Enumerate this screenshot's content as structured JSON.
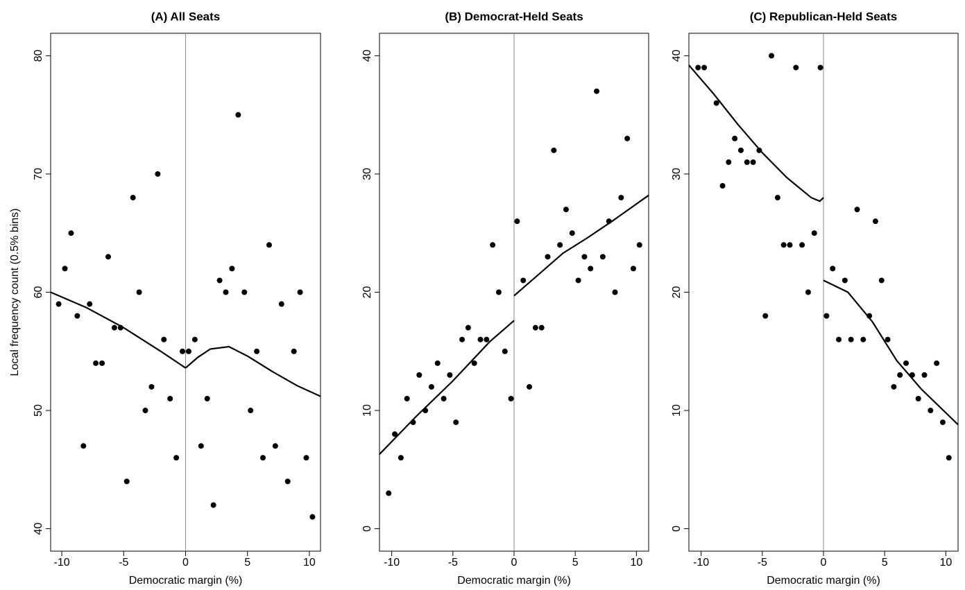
{
  "chart_data": [
    {
      "type": "scatter",
      "title": "(A) All Seats",
      "x_label": "Democratic margin (%)",
      "y_label": "Local frequency count (0.5% bins)",
      "xlim": [
        -10.9,
        10.9
      ],
      "ylim": [
        38.1,
        81.9
      ],
      "xticks": [
        -10,
        -5,
        0,
        5,
        10
      ],
      "yticks": [
        40,
        50,
        60,
        70,
        80
      ],
      "cutoff": 0,
      "point_color": "#000000",
      "line_color": "#000000",
      "points": {
        "x": [
          -10.25,
          -9.75,
          -9.25,
          -8.75,
          -8.25,
          -7.75,
          -7.25,
          -6.75,
          -6.25,
          -5.75,
          -5.25,
          -4.75,
          -4.25,
          -3.75,
          -3.25,
          -2.75,
          -2.25,
          -1.75,
          -1.25,
          -0.75,
          -0.25,
          0.25,
          0.75,
          1.25,
          1.75,
          2.25,
          2.75,
          3.25,
          3.75,
          4.25,
          4.75,
          5.25,
          5.75,
          6.25,
          6.75,
          7.25,
          7.75,
          8.25,
          8.75,
          9.25,
          9.75,
          10.25
        ],
        "y": [
          59,
          62,
          65,
          58,
          47,
          59,
          54,
          54,
          63,
          57,
          57,
          44,
          68,
          60,
          50,
          52,
          70,
          56,
          51,
          46,
          55,
          55,
          56,
          47,
          51,
          42,
          61,
          60,
          62,
          75,
          60,
          50,
          55,
          46,
          64,
          47,
          59,
          44,
          55,
          60,
          46,
          41
        ]
      },
      "fit_left": {
        "x": [
          -10.9,
          -8,
          -5,
          -2,
          0
        ],
        "y": [
          60,
          58.7,
          57,
          55,
          53.6
        ]
      },
      "fit_right": {
        "x": [
          0,
          1,
          2,
          3.5,
          5,
          7,
          9,
          10.9
        ],
        "y": [
          53.6,
          54.5,
          55.2,
          55.4,
          54.6,
          53.3,
          52.1,
          51.2
        ]
      }
    },
    {
      "type": "scatter",
      "title": "(B) Democrat-Held Seats",
      "x_label": "Democratic margin (%)",
      "xlim": [
        -11,
        11
      ],
      "ylim": [
        -1.9,
        41.9
      ],
      "xticks": [
        -10,
        -5,
        0,
        5,
        10
      ],
      "yticks": [
        0,
        10,
        20,
        30,
        40
      ],
      "cutoff": 0,
      "point_color": "#000000",
      "line_color": "#000000",
      "points": {
        "x": [
          -10.25,
          -9.75,
          -9.25,
          -8.75,
          -8.25,
          -7.75,
          -7.25,
          -6.75,
          -6.25,
          -5.75,
          -5.25,
          -4.75,
          -4.25,
          -3.75,
          -3.25,
          -2.75,
          -2.25,
          -1.75,
          -1.25,
          -0.75,
          -0.25,
          0.25,
          0.75,
          1.25,
          1.75,
          2.25,
          2.75,
          3.25,
          3.75,
          4.25,
          4.75,
          5.25,
          5.75,
          6.25,
          6.75,
          7.25,
          7.75,
          8.25,
          8.75,
          9.25,
          9.75,
          10.25
        ],
        "y": [
          3,
          8,
          6,
          11,
          9,
          13,
          10,
          12,
          14,
          11,
          13,
          9,
          16,
          17,
          14,
          16,
          16,
          24,
          20,
          15,
          11,
          26,
          21,
          12,
          17,
          17,
          23,
          32,
          24,
          27,
          25,
          21,
          23,
          22,
          37,
          23,
          26,
          20,
          28,
          33,
          22,
          24
        ]
      },
      "fit_left": {
        "x": [
          -11,
          -8,
          -5,
          -2,
          0
        ],
        "y": [
          6.3,
          9.5,
          12.5,
          15.8,
          17.6
        ]
      },
      "fit_right": {
        "x": [
          0,
          2,
          4,
          6,
          8,
          11
        ],
        "y": [
          19.7,
          21.5,
          23.3,
          24.6,
          26,
          28.2
        ]
      }
    },
    {
      "type": "scatter",
      "title": "(C) Republican-Held Seats",
      "x_label": "Democratic margin (%)",
      "xlim": [
        -11,
        11
      ],
      "ylim": [
        -1.9,
        41.9
      ],
      "xticks": [
        -10,
        -5,
        0,
        5,
        10
      ],
      "yticks": [
        0,
        10,
        20,
        30,
        40
      ],
      "cutoff": 0,
      "point_color": "#000000",
      "line_color": "#000000",
      "points": {
        "x": [
          -10.25,
          -9.75,
          -8.75,
          -8.25,
          -7.75,
          -7.25,
          -6.75,
          -6.25,
          -5.75,
          -5.25,
          -4.75,
          -4.25,
          -3.75,
          -3.25,
          -2.75,
          -2.25,
          -1.75,
          -1.25,
          -0.75,
          -0.25,
          0.25,
          0.75,
          1.25,
          1.75,
          2.25,
          2.75,
          3.25,
          3.75,
          4.25,
          4.75,
          5.25,
          5.75,
          6.25,
          6.75,
          7.25,
          7.75,
          8.25,
          8.75,
          9.25,
          9.75,
          10.25
        ],
        "y": [
          39,
          39,
          36,
          29,
          31,
          33,
          32,
          31,
          31,
          32,
          18,
          40,
          28,
          24,
          24,
          39,
          24,
          20,
          25,
          39,
          18,
          22,
          16,
          21,
          16,
          27,
          16,
          18,
          26,
          21,
          16,
          12,
          13,
          14,
          13,
          11,
          13,
          10,
          14,
          9,
          6
        ]
      },
      "fit_left": {
        "x": [
          -11,
          -9,
          -7,
          -5,
          -3,
          -1,
          -0.3,
          0
        ],
        "y": [
          39.2,
          36.8,
          34.2,
          31.8,
          29.7,
          28,
          27.7,
          28
        ]
      },
      "fit_right": {
        "x": [
          0,
          2,
          4,
          6,
          8,
          11
        ],
        "y": [
          21,
          20,
          17.5,
          14.2,
          11.8,
          8.8
        ]
      }
    }
  ]
}
